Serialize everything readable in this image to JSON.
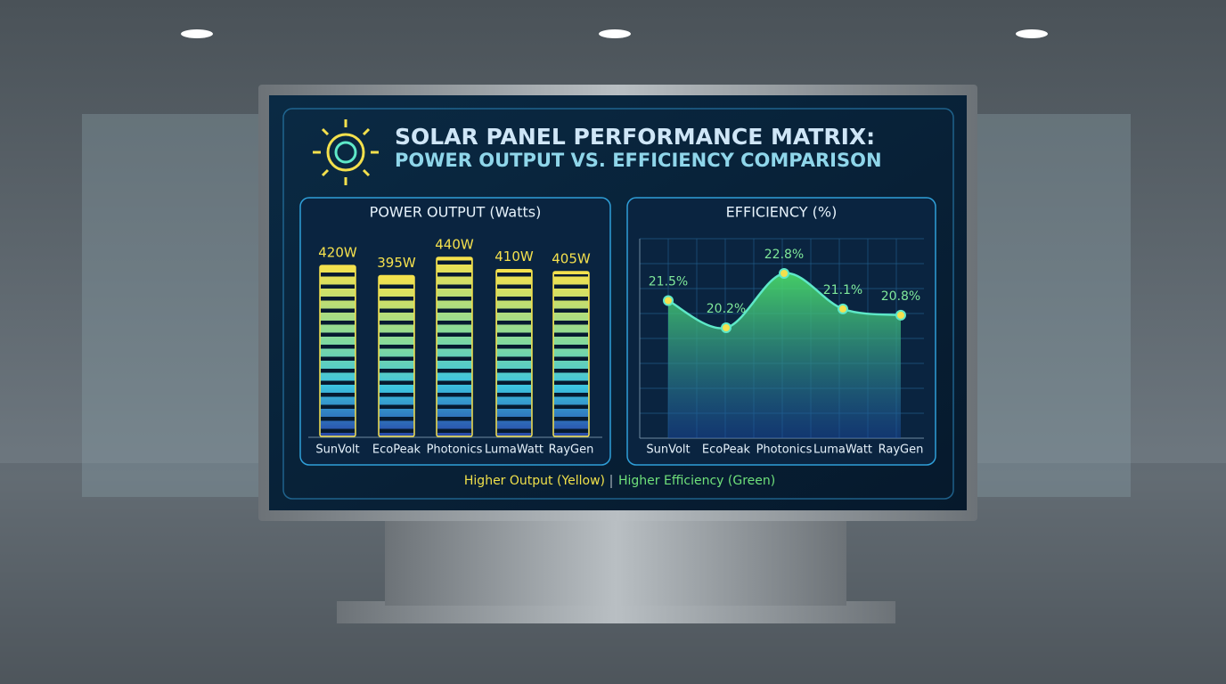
{
  "header": {
    "title": "SOLAR PANEL PERFORMANCE MATRIX:",
    "subtitle": "POWER OUTPUT VS. EFFICIENCY COMPARISON"
  },
  "chart_data": [
    {
      "type": "bar",
      "title": "POWER OUTPUT (Watts)",
      "categories": [
        "SunVolt",
        "EcoPeak",
        "Photonics",
        "LumaWatt",
        "RayGen"
      ],
      "values": [
        420,
        395,
        440,
        410,
        405
      ],
      "value_labels": [
        "420W",
        "395W",
        "440W",
        "410W",
        "405W"
      ],
      "color": "#f4e04d"
    },
    {
      "type": "line",
      "title": "EFFICIENCY (%)",
      "categories": [
        "SunVolt",
        "EcoPeak",
        "Photonics",
        "LumaWatt",
        "RayGen"
      ],
      "values": [
        21.5,
        20.2,
        22.8,
        21.1,
        20.8
      ],
      "value_labels": [
        "21.5%",
        "20.2%",
        "22.8%",
        "21.1%",
        "20.8%"
      ],
      "color": "#5ee8c8"
    }
  ],
  "legend_note": {
    "output": "Higher Output (Yellow)",
    "efficiency": "Higher Efficiency (Green)"
  }
}
